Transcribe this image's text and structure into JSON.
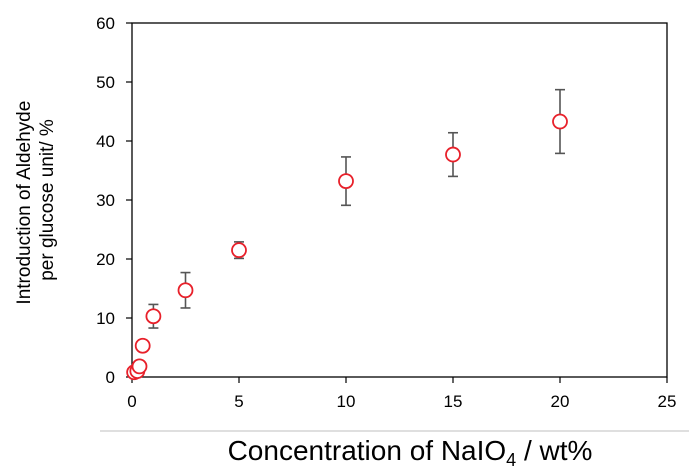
{
  "chart_data": {
    "type": "scatter",
    "title": "",
    "xlabel_parts": [
      "Concentration  of NaIO",
      "4",
      " / wt%"
    ],
    "ylabel_lines": [
      "Introduction of Aldehyde",
      "per glucose unit/ %"
    ],
    "xlim": [
      0,
      25
    ],
    "ylim": [
      0,
      60
    ],
    "xticks": [
      0,
      5,
      10,
      15,
      20,
      25
    ],
    "yticks": [
      0,
      10,
      20,
      30,
      40,
      50,
      60
    ],
    "grid": false,
    "legend": "none",
    "marker_color": "#e8202a",
    "errorbar_color": "#555555",
    "series": [
      {
        "points": [
          {
            "x": 0.1,
            "y": 0.8,
            "err": 0
          },
          {
            "x": 0.25,
            "y": 1.0,
            "err": 0
          },
          {
            "x": 0.35,
            "y": 1.8,
            "err": 0
          },
          {
            "x": 0.5,
            "y": 5.3,
            "err": 0
          },
          {
            "x": 1,
            "y": 10.3,
            "err": 2.0
          },
          {
            "x": 2.5,
            "y": 14.7,
            "err": 3.0
          },
          {
            "x": 5,
            "y": 21.5,
            "err": 1.4
          },
          {
            "x": 10,
            "y": 33.2,
            "err": 4.1
          },
          {
            "x": 15,
            "y": 37.7,
            "err": 3.7
          },
          {
            "x": 20,
            "y": 43.3,
            "err": 5.4
          }
        ]
      }
    ]
  }
}
